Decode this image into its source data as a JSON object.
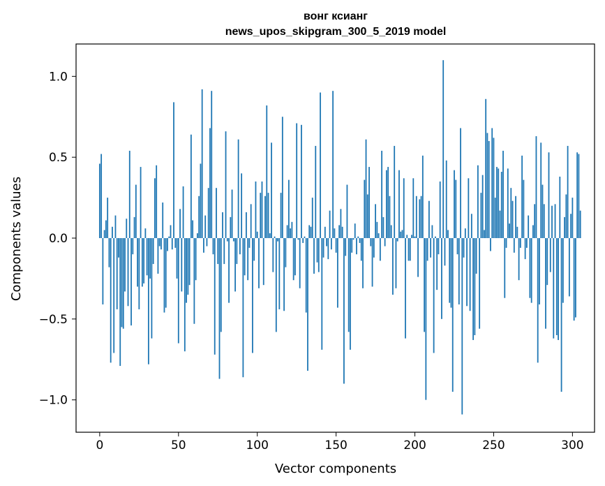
{
  "chart_data": {
    "type": "bar",
    "title": "вонг ксианг",
    "subtitle": "news_upos_skipgram_300_5_2019 model",
    "xlabel": "Vector components",
    "ylabel": "Components values",
    "xlim": [
      -15,
      314
    ],
    "ylim": [
      -1.2,
      1.2
    ],
    "xticks": [
      0,
      50,
      100,
      150,
      200,
      250,
      300
    ],
    "xtick_labels": [
      "0",
      "50",
      "100",
      "150",
      "200",
      "250",
      "300"
    ],
    "yticks": [
      1.0,
      0.5,
      0.0,
      -0.5,
      -1.0
    ],
    "ytick_labels": [
      "1.0",
      "0.5",
      "0.0",
      "−0.5",
      "−1.0"
    ],
    "grid": false,
    "bar_color": "#1f77b4",
    "series": [
      {
        "x_start": 0,
        "values": [
          0.46,
          0.52,
          -0.41,
          0.05,
          0.11,
          0.25,
          -0.18,
          -0.77,
          0.07,
          -0.71,
          0.14,
          -0.44,
          -0.12,
          -0.79,
          -0.55,
          -0.56,
          -0.33,
          0.12,
          -0.42,
          0.54,
          -0.54,
          -0.1,
          0.13,
          0.33,
          -0.3,
          -0.44,
          0.44,
          -0.3,
          -0.28,
          0.06,
          -0.23,
          -0.78,
          -0.25,
          -0.62,
          -0.16,
          0.37,
          0.45,
          -0.22,
          -0.05,
          -0.07,
          0.22,
          -0.46,
          -0.43,
          -0.08,
          0.01,
          0.08,
          -0.07,
          0.84,
          -0.06,
          -0.25,
          -0.65,
          0.18,
          -0.33,
          0.32,
          -0.7,
          -0.4,
          -0.35,
          -0.29,
          0.64,
          0.11,
          -0.53,
          -0.26,
          0.03,
          0.26,
          0.46,
          0.92,
          -0.09,
          0.14,
          -0.05,
          0.31,
          0.68,
          0.91,
          -0.1,
          -0.72,
          0.31,
          -0.16,
          -0.87,
          -0.58,
          0.16,
          -0.16,
          0.66,
          -0.02,
          -0.4,
          0.13,
          0.3,
          -0.02,
          -0.33,
          -0.16,
          0.61,
          -0.1,
          0.4,
          -0.86,
          -0.23,
          0.16,
          -0.26,
          -0.06,
          0.21,
          -0.71,
          -0.14,
          0.35,
          0.04,
          -0.31,
          0.28,
          0.35,
          -0.29,
          0.26,
          0.82,
          0.28,
          0.03,
          0.59,
          -0.21,
          0.01,
          -0.58,
          -0.02,
          -0.44,
          0.28,
          0.75,
          -0.45,
          -0.18,
          0.08,
          0.36,
          0.06,
          0.1,
          -0.26,
          -0.23,
          0.71,
          -0.01,
          -0.31,
          0.7,
          -0.03,
          0.01,
          -0.46,
          -0.82,
          0.08,
          0.07,
          0.25,
          -0.22,
          0.57,
          -0.15,
          -0.21,
          0.9,
          -0.69,
          -0.12,
          0.07,
          -0.05,
          -0.13,
          0.17,
          -0.07,
          0.91,
          0.06,
          -0.09,
          -0.43,
          0.08,
          0.18,
          0.07,
          -0.9,
          -0.11,
          0.33,
          -0.58,
          -0.69,
          -0.09,
          -0.01,
          0.09,
          -0.1,
          0.01,
          -0.03,
          -0.14,
          -0.31,
          0.36,
          0.61,
          0.27,
          0.44,
          -0.05,
          -0.3,
          -0.12,
          0.21,
          0.1,
          0.03,
          -0.14,
          0.54,
          0.13,
          -0.05,
          0.42,
          0.44,
          0.26,
          0.08,
          -0.35,
          0.57,
          -0.31,
          -0.02,
          0.42,
          0.04,
          0.05,
          0.37,
          -0.62,
          0.02,
          -0.14,
          -0.14,
          0.02,
          0.37,
          0.01,
          0.26,
          -0.24,
          0.24,
          0.26,
          0.51,
          -0.58,
          -1.0,
          -0.14,
          0.23,
          -0.12,
          0.08,
          -0.71,
          0.01,
          -0.32,
          -0.1,
          0.35,
          -0.5,
          1.1,
          -0.17,
          0.48,
          0.05,
          -0.4,
          -0.43,
          -0.95,
          0.42,
          0.36,
          -0.1,
          -0.41,
          0.68,
          -1.09,
          -0.12,
          0.06,
          -0.42,
          0.37,
          -0.45,
          0.15,
          -0.63,
          -0.6,
          -0.22,
          0.45,
          -0.56,
          0.28,
          0.39,
          0.05,
          0.86,
          0.65,
          0.6,
          -0.08,
          0.68,
          0.62,
          0.25,
          0.44,
          0.43,
          0.17,
          0.41,
          0.54,
          -0.37,
          -0.06,
          0.43,
          0.09,
          0.31,
          0.23,
          -0.09,
          0.26,
          0.07,
          -0.26,
          -0.06,
          0.51,
          0.36,
          -0.13,
          -0.06,
          0.14,
          -0.37,
          -0.4,
          0.08,
          0.21,
          0.63,
          -0.77,
          -0.41,
          0.59,
          0.33,
          0.21,
          -0.56,
          -0.29,
          0.53,
          -0.21,
          0.2,
          -0.62,
          0.21,
          -0.6,
          -0.63,
          0.38,
          -0.95,
          -0.4,
          0.13,
          0.27,
          0.57,
          -0.36,
          0.15,
          0.25,
          -0.51,
          -0.49,
          0.53,
          0.52,
          0.17
        ]
      }
    ]
  }
}
